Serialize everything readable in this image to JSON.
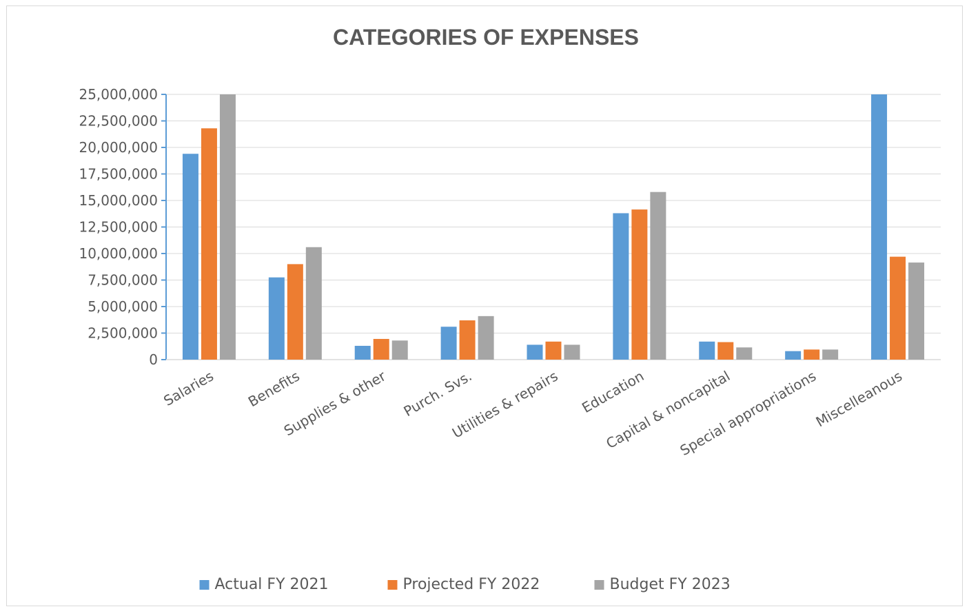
{
  "chart_data": {
    "type": "bar",
    "title": "CATEGORIES OF EXPENSES",
    "xlabel": "",
    "ylabel": "",
    "ylim": [
      0,
      25000000
    ],
    "yticks": [
      0,
      2500000,
      5000000,
      7500000,
      10000000,
      12500000,
      15000000,
      17500000,
      20000000,
      22500000,
      25000000
    ],
    "ytick_labels": [
      "0",
      "2,500,000",
      "5,000,000",
      "7,500,000",
      "10,000,000",
      "12,500,000",
      "15,000,000",
      "17,500,000",
      "20,000,000",
      "22,500,000",
      "25,000,000"
    ],
    "grid": true,
    "legend_position": "bottom",
    "categories": [
      "Salaries",
      "Benefits",
      "Supplies & other",
      "Purch. Svs.",
      "Utilities & repairs",
      "Education",
      "Capital & noncapital",
      "Special appropriations",
      "Miscelleanous"
    ],
    "series": [
      {
        "name": "Actual FY 2021",
        "color": "#5b9bd5",
        "values": [
          19400000,
          7750000,
          1300000,
          3100000,
          1400000,
          13800000,
          1700000,
          800000,
          25000000
        ]
      },
      {
        "name": "Projected FY 2022",
        "color": "#ed7d31",
        "values": [
          21800000,
          9000000,
          1950000,
          3700000,
          1700000,
          14150000,
          1650000,
          950000,
          9700000
        ]
      },
      {
        "name": "Budget FY 2023",
        "color": "#a5a5a5",
        "values": [
          25000000,
          10600000,
          1800000,
          4100000,
          1400000,
          15800000,
          1150000,
          950000,
          9150000
        ]
      }
    ]
  }
}
